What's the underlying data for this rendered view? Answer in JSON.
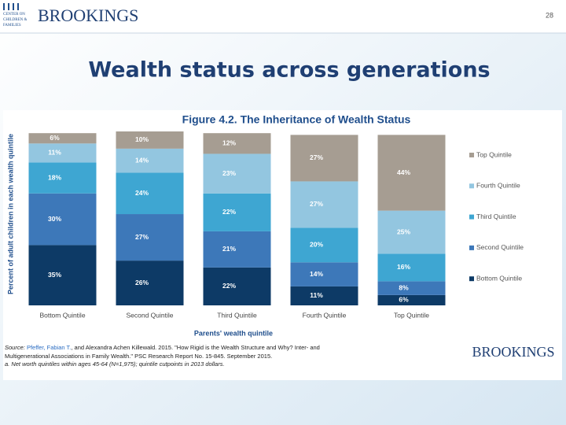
{
  "header": {
    "logo": "BROOKINGS",
    "logo_sub": [
      "CENTER ON",
      "CHILDREN &",
      "FAMILIES"
    ],
    "page_number": "28"
  },
  "slide_title": "Wealth status across generations",
  "chart_data": {
    "type": "stacked_bar",
    "title": "Figure 4.2. The Inheritance of Wealth Status",
    "x_label": "Parents' wealth quintile",
    "y_label": "Percent of adult children in each wealth quintile",
    "categories": [
      "Bottom Quintile",
      "Second Quintile",
      "Third Quintile",
      "Fourth Quintile",
      "Top Quintile"
    ],
    "series": [
      {
        "name": "Bottom Quintile",
        "color": "#0d3a66",
        "values": [
          35,
          26,
          22,
          11,
          6
        ],
        "value_labels": [
          "35%",
          "26%",
          "22%",
          "11%",
          "6%"
        ]
      },
      {
        "name": "Second Quintile",
        "color": "#3d78b9",
        "values": [
          30,
          27,
          21,
          14,
          8
        ],
        "value_labels": [
          "30%",
          "27%",
          "21%",
          "14%",
          "8%"
        ]
      },
      {
        "name": "Third Quintile",
        "color": "#3ea6d2",
        "values": [
          18,
          24,
          22,
          20,
          16
        ],
        "value_labels": [
          "18%",
          "24%",
          "22%",
          "20%",
          "16%"
        ]
      },
      {
        "name": "Fourth Quintile",
        "color": "#93c6e0",
        "values": [
          11,
          14,
          23,
          27,
          25
        ],
        "value_labels": [
          "11%",
          "14%",
          "23%",
          "27%",
          "25%"
        ]
      },
      {
        "name": "Top Quintile",
        "color": "#a69d92",
        "values": [
          6,
          10,
          12,
          27,
          44
        ],
        "value_labels": [
          "6%",
          "10%",
          "12%",
          "27%",
          "44%"
        ]
      }
    ],
    "ylim": [
      0,
      101
    ],
    "legend": "right"
  },
  "source": {
    "label": "Source:",
    "author": "Pfeffer, Fabian T.",
    "text1": ", and Alexandra Achen Killewald. 2015. \"How Rigid is the Wealth Structure and Why? Inter- and",
    "text2": "Multigenerational Associations in Family Wealth.\" PSC Research Report No. 15-845. September 2015.",
    "note": "a. Net worth quintiles within ages 45-64 (N=1,975); quintile cutpoints in 2013 dollars."
  },
  "footer_logo": "BROOKINGS"
}
